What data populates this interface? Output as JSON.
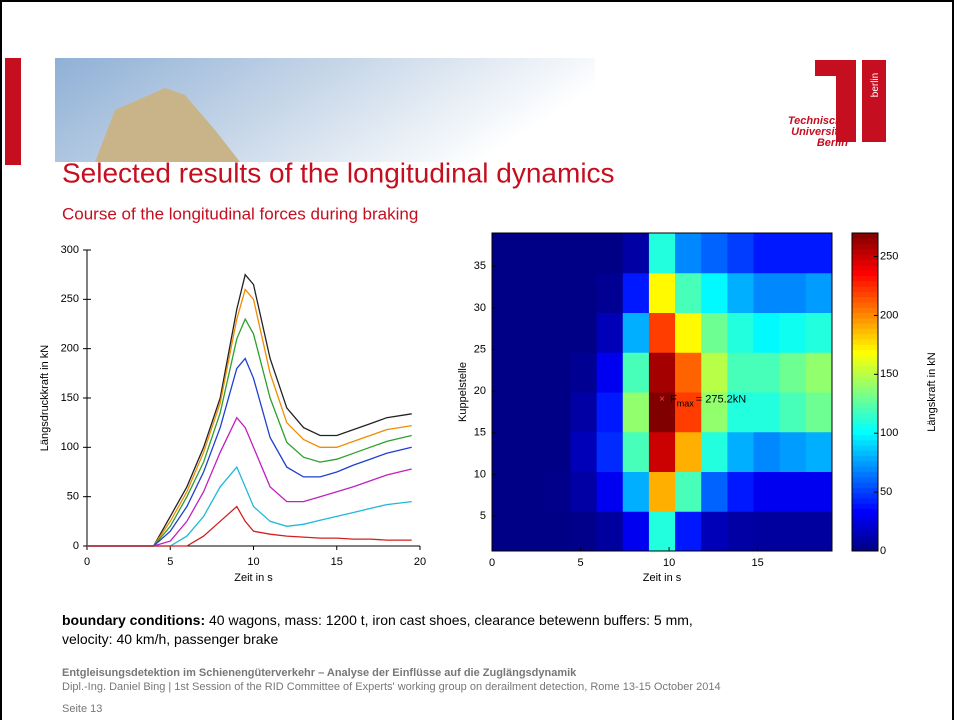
{
  "slide": {
    "title": "Selected results of the longitudinal dynamics",
    "subtitle": "Course of the longitudinal forces during braking",
    "logo": {
      "line1": "Technische",
      "line2": "Universität",
      "line3": "Berlin",
      "mark": "berlin"
    },
    "boundary_label": "boundary conditions:",
    "boundary_lines": [
      "40 wagons, mass: 1200 t, iron cast shoes, clearance betewenn buffers: 5 mm,",
      "velocity: 40 km/h, passenger brake"
    ],
    "footer_bold": "Entgleisungsdetektion im Schienengüterverkehr – Analyse der Einflüsse auf die Zuglängsdynamik",
    "footer_line": "Dipl.-Ing. Daniel Bing | 1st Session of the RID Committee of Experts' working group on derailment detection, Rome 13-15 October 2014",
    "page": "Seite 13"
  },
  "chart_data": [
    {
      "type": "line",
      "xlabel": "Zeit in s",
      "ylabel": "Längsdruckkraft in kN",
      "xlim": [
        0,
        20
      ],
      "xticks": [
        0,
        5,
        10,
        15,
        20
      ],
      "ylim": [
        0,
        300
      ],
      "yticks": [
        0,
        50,
        100,
        150,
        200,
        250,
        300
      ],
      "x": [
        0,
        4,
        5,
        6,
        7,
        8,
        9,
        9.5,
        10,
        11,
        12,
        13,
        14,
        15,
        16,
        17,
        18,
        19.5
      ],
      "series": [
        {
          "color": "#222222",
          "values": [
            0,
            0,
            30,
            60,
            100,
            150,
            240,
            275,
            265,
            190,
            140,
            120,
            112,
            112,
            118,
            124,
            130,
            134
          ]
        },
        {
          "color": "#f08c00",
          "values": [
            0,
            0,
            25,
            55,
            95,
            145,
            230,
            260,
            250,
            175,
            125,
            108,
            100,
            100,
            106,
            112,
            118,
            122
          ]
        },
        {
          "color": "#2ca02c",
          "values": [
            0,
            0,
            20,
            50,
            85,
            135,
            210,
            230,
            215,
            150,
            105,
            90,
            85,
            88,
            94,
            100,
            106,
            112
          ]
        },
        {
          "color": "#1f3fd0",
          "values": [
            0,
            0,
            15,
            40,
            75,
            120,
            180,
            190,
            170,
            110,
            80,
            70,
            70,
            75,
            82,
            88,
            94,
            100
          ]
        },
        {
          "color": "#c020c0",
          "values": [
            0,
            0,
            5,
            25,
            55,
            95,
            130,
            120,
            100,
            60,
            45,
            45,
            50,
            55,
            60,
            66,
            72,
            78
          ]
        },
        {
          "color": "#20b8d8",
          "values": [
            0,
            0,
            0,
            10,
            30,
            60,
            80,
            60,
            40,
            25,
            20,
            22,
            26,
            30,
            34,
            38,
            42,
            45
          ]
        },
        {
          "color": "#d02020",
          "values": [
            0,
            0,
            0,
            0,
            10,
            25,
            40,
            25,
            15,
            12,
            10,
            9,
            8,
            8,
            7,
            7,
            6,
            6
          ]
        }
      ]
    },
    {
      "type": "heatmap",
      "xlabel": "Zeit in s",
      "ylabel": "Kuppelstelle",
      "colorbar_label": "Längskraft in kN",
      "xlim": [
        0,
        19.2
      ],
      "xticks": [
        0,
        5,
        10,
        15
      ],
      "ylim": [
        0.8,
        39
      ],
      "yticks": [
        5,
        10,
        15,
        20,
        25,
        30,
        35
      ],
      "clim": [
        0,
        270
      ],
      "cticks": [
        0,
        50,
        100,
        150,
        200,
        250
      ],
      "z": [
        [
          2,
          2,
          2,
          3,
          8,
          30,
          110,
          40,
          15,
          10,
          8,
          8,
          8
        ],
        [
          2,
          2,
          3,
          10,
          30,
          80,
          190,
          120,
          60,
          40,
          30,
          30,
          30
        ],
        [
          2,
          2,
          2,
          15,
          45,
          120,
          250,
          190,
          110,
          80,
          70,
          75,
          80
        ],
        [
          2,
          2,
          2,
          10,
          40,
          140,
          270,
          220,
          140,
          110,
          110,
          120,
          130
        ],
        [
          2,
          2,
          2,
          5,
          30,
          120,
          260,
          210,
          150,
          120,
          120,
          130,
          140
        ],
        [
          2,
          2,
          2,
          2,
          15,
          80,
          220,
          170,
          130,
          110,
          100,
          105,
          110
        ],
        [
          2,
          2,
          2,
          2,
          5,
          40,
          170,
          120,
          100,
          80,
          70,
          70,
          75
        ],
        [
          2,
          2,
          2,
          2,
          2,
          10,
          110,
          70,
          60,
          50,
          40,
          40,
          40
        ]
      ],
      "fmax": {
        "x": 9.6,
        "y": 19,
        "symbol": "F",
        "sub": "max",
        "text": "= 275.2kN"
      }
    }
  ]
}
